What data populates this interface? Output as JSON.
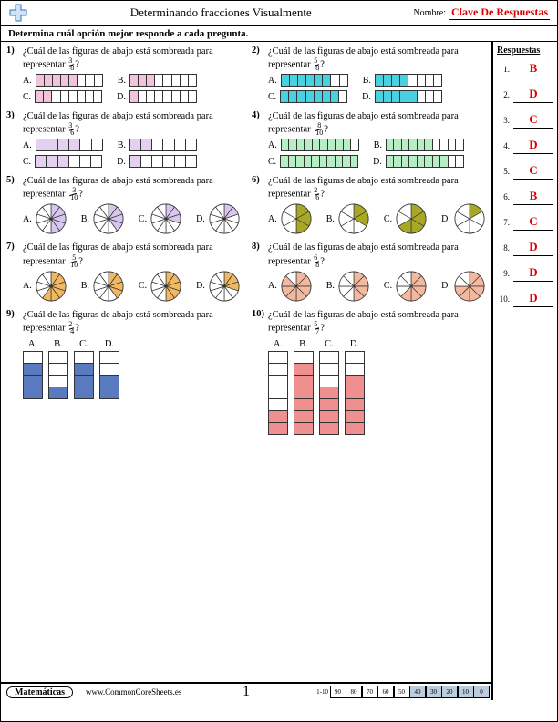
{
  "header": {
    "title": "Determinando fracciones Visualmente",
    "name_label": "Nombre:",
    "answer_key": "Clave De Respuestas"
  },
  "instruction": "Determina cuál opción mejor responde a cada pregunta.",
  "answers_header": "Respuestas",
  "answers": [
    {
      "n": "1.",
      "v": "B"
    },
    {
      "n": "2.",
      "v": "D"
    },
    {
      "n": "3.",
      "v": "C"
    },
    {
      "n": "4.",
      "v": "D"
    },
    {
      "n": "5.",
      "v": "C"
    },
    {
      "n": "6.",
      "v": "B"
    },
    {
      "n": "7.",
      "v": "C"
    },
    {
      "n": "8.",
      "v": "D"
    },
    {
      "n": "9.",
      "v": "D"
    },
    {
      "n": "10.",
      "v": "D"
    }
  ],
  "question_stem": "¿Cuál de las figuras de abajo está sombreada para representar",
  "labels": {
    "A": "A.",
    "B": "B.",
    "C": "C.",
    "D": "D."
  },
  "colors": {
    "pink": "#f4c2dd",
    "cyan": "#48d1e0",
    "lav": "#e4d0ef",
    "green": "#b7eec6",
    "purple": "#d9c6ef",
    "olive": "#a8a826",
    "orange": "#f0b860",
    "coral": "#f2b8a0",
    "blue": "#5a7abf",
    "red": "#ef8f8f",
    "empty": "#ffffff"
  },
  "questions": [
    {
      "num": "1)",
      "frac_n": "3",
      "frac_d": "8",
      "style": "hbar",
      "color": "pink",
      "total": 8,
      "opts": [
        {
          "l": "A",
          "fill": 5
        },
        {
          "l": "B",
          "fill": 3
        },
        {
          "l": "C",
          "fill": 2
        },
        {
          "l": "D",
          "fill": 1
        }
      ]
    },
    {
      "num": "2)",
      "frac_n": "5",
      "frac_d": "8",
      "style": "hbar",
      "color": "cyan",
      "total": 8,
      "opts": [
        {
          "l": "A",
          "fill": 6
        },
        {
          "l": "B",
          "fill": 4
        },
        {
          "l": "C",
          "fill": 7
        },
        {
          "l": "D",
          "fill": 5
        }
      ]
    },
    {
      "num": "3)",
      "frac_n": "3",
      "frac_d": "6",
      "style": "hbar",
      "color": "lav",
      "total": 6,
      "opts": [
        {
          "l": "A",
          "fill": 4
        },
        {
          "l": "B",
          "fill": 2
        },
        {
          "l": "C",
          "fill": 3
        },
        {
          "l": "D",
          "fill": 1
        }
      ]
    },
    {
      "num": "4)",
      "frac_n": "8",
      "frac_d": "10",
      "style": "hbar",
      "color": "green",
      "total": 10,
      "opts": [
        {
          "l": "A",
          "fill": 9
        },
        {
          "l": "B",
          "fill": 6
        },
        {
          "l": "C",
          "fill": 10
        },
        {
          "l": "D",
          "fill": 8
        }
      ]
    },
    {
      "num": "5)",
      "frac_n": "3",
      "frac_d": "10",
      "style": "pie",
      "color": "purple",
      "total": 10,
      "opts": [
        {
          "l": "A",
          "fill": 5
        },
        {
          "l": "B",
          "fill": 4
        },
        {
          "l": "C",
          "fill": 3
        },
        {
          "l": "D",
          "fill": 2
        }
      ]
    },
    {
      "num": "6)",
      "frac_n": "2",
      "frac_d": "6",
      "style": "pie",
      "color": "olive",
      "total": 6,
      "opts": [
        {
          "l": "A",
          "fill": 3
        },
        {
          "l": "B",
          "fill": 2
        },
        {
          "l": "C",
          "fill": 4
        },
        {
          "l": "D",
          "fill": 1
        }
      ]
    },
    {
      "num": "7)",
      "frac_n": "5",
      "frac_d": "10",
      "style": "pie",
      "color": "orange",
      "total": 10,
      "opts": [
        {
          "l": "A",
          "fill": 6
        },
        {
          "l": "B",
          "fill": 4
        },
        {
          "l": "C",
          "fill": 5
        },
        {
          "l": "D",
          "fill": 3
        }
      ]
    },
    {
      "num": "8)",
      "frac_n": "6",
      "frac_d": "8",
      "style": "pie",
      "color": "coral",
      "total": 8,
      "opts": [
        {
          "l": "A",
          "fill": 7
        },
        {
          "l": "B",
          "fill": 4
        },
        {
          "l": "C",
          "fill": 5
        },
        {
          "l": "D",
          "fill": 6
        }
      ]
    },
    {
      "num": "9)",
      "frac_n": "2",
      "frac_d": "4",
      "style": "vbar",
      "color": "blue",
      "total": 4,
      "opts": [
        {
          "l": "A",
          "fill": 3
        },
        {
          "l": "B",
          "fill": 1
        },
        {
          "l": "C",
          "fill": 3
        },
        {
          "l": "D",
          "fill": 2
        }
      ]
    },
    {
      "num": "10)",
      "frac_n": "5",
      "frac_d": "7",
      "style": "vbar",
      "color": "red",
      "total": 7,
      "opts": [
        {
          "l": "A",
          "fill": 2
        },
        {
          "l": "B",
          "fill": 6
        },
        {
          "l": "C",
          "fill": 4
        },
        {
          "l": "D",
          "fill": 5
        }
      ]
    }
  ],
  "footer": {
    "subject": "Matemáticas",
    "site": "www.CommonCoreSheets.es",
    "page": "1",
    "score_label": "1-10",
    "scores": [
      "90",
      "80",
      "70",
      "60",
      "50",
      "40",
      "30",
      "20",
      "10",
      "0"
    ],
    "shaded_from": 5
  }
}
